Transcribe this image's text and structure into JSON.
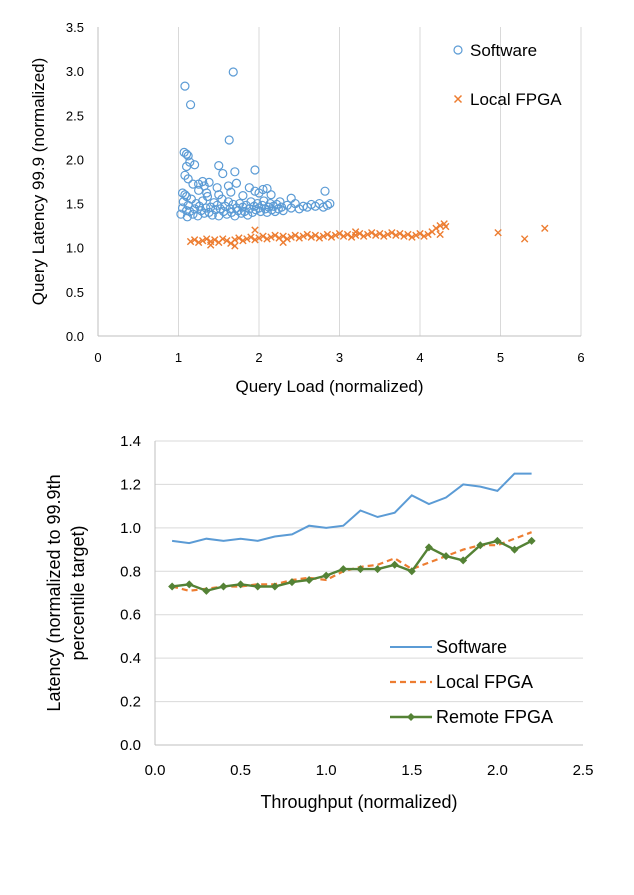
{
  "colors": {
    "software": "#5b9bd5",
    "local_fpga": "#ed7d31",
    "remote_fpga": "#548235",
    "gridline": "#d9d9d9",
    "axis": "#bfbfbf"
  },
  "chart_data": [
    {
      "type": "scatter",
      "xlabel": "Query Load (normalized)",
      "ylabel": "Query Latency 99.9 (normalized)",
      "xlim": [
        0,
        6
      ],
      "ylim": [
        0,
        3.5
      ],
      "xticks": [
        "0",
        "1",
        "2",
        "3",
        "4",
        "5",
        "6"
      ],
      "yticks": [
        "0.0",
        "0.5",
        "1.0",
        "1.5",
        "2.0",
        "2.5",
        "3.0",
        "3.5"
      ],
      "grid": "vertical",
      "legend_position": "top-right",
      "series": [
        {
          "name": "Software",
          "marker": "circle",
          "points": [
            [
              1.03,
              1.38
            ],
            [
              1.05,
              1.45
            ],
            [
              1.06,
              1.52
            ],
            [
              1.08,
              1.6
            ],
            [
              1.1,
              1.42
            ],
            [
              1.11,
              1.35
            ],
            [
              1.12,
              1.48
            ],
            [
              1.14,
              1.41
            ],
            [
              1.16,
              1.55
            ],
            [
              1.18,
              1.38
            ],
            [
              1.2,
              1.44
            ],
            [
              1.22,
              1.5
            ],
            [
              1.24,
              1.36
            ],
            [
              1.26,
              1.47
            ],
            [
              1.28,
              1.42
            ],
            [
              1.3,
              1.53
            ],
            [
              1.32,
              1.39
            ],
            [
              1.34,
              1.45
            ],
            [
              1.36,
              1.58
            ],
            [
              1.38,
              1.4
            ],
            [
              1.4,
              1.46
            ],
            [
              1.42,
              1.37
            ],
            [
              1.44,
              1.51
            ],
            [
              1.46,
              1.43
            ],
            [
              1.48,
              1.48
            ],
            [
              1.5,
              1.36
            ],
            [
              1.52,
              1.44
            ],
            [
              1.54,
              1.55
            ],
            [
              1.56,
              1.41
            ],
            [
              1.58,
              1.47
            ],
            [
              1.6,
              1.38
            ],
            [
              1.62,
              1.52
            ],
            [
              1.64,
              1.44
            ],
            [
              1.66,
              1.4
            ],
            [
              1.68,
              1.49
            ],
            [
              1.7,
              1.36
            ],
            [
              1.72,
              1.45
            ],
            [
              1.74,
              1.42
            ],
            [
              1.76,
              1.5
            ],
            [
              1.78,
              1.39
            ],
            [
              1.8,
              1.46
            ],
            [
              1.82,
              1.41
            ],
            [
              1.84,
              1.48
            ],
            [
              1.86,
              1.37
            ],
            [
              1.88,
              1.44
            ],
            [
              1.9,
              1.52
            ],
            [
              1.92,
              1.4
            ],
            [
              1.94,
              1.47
            ],
            [
              1.96,
              1.43
            ],
            [
              1.98,
              1.5
            ],
            [
              2.0,
              1.45
            ],
            [
              2.02,
              1.41
            ],
            [
              2.04,
              1.48
            ],
            [
              2.06,
              1.53
            ],
            [
              2.08,
              1.44
            ],
            [
              2.1,
              1.4
            ],
            [
              2.12,
              1.46
            ],
            [
              2.14,
              1.5
            ],
            [
              2.16,
              1.43
            ],
            [
              2.18,
              1.47
            ],
            [
              2.2,
              1.41
            ],
            [
              2.22,
              1.49
            ],
            [
              2.24,
              1.44
            ],
            [
              2.26,
              1.52
            ],
            [
              2.28,
              1.46
            ],
            [
              2.3,
              1.42
            ],
            [
              2.35,
              1.48
            ],
            [
              2.4,
              1.45
            ],
            [
              2.45,
              1.5
            ],
            [
              2.5,
              1.44
            ],
            [
              2.55,
              1.47
            ],
            [
              2.6,
              1.46
            ],
            [
              2.65,
              1.49
            ],
            [
              2.7,
              1.47
            ],
            [
              2.75,
              1.5
            ],
            [
              2.8,
              1.46
            ],
            [
              2.85,
              1.48
            ],
            [
              2.88,
              1.5
            ],
            [
              1.05,
              1.62
            ],
            [
              1.1,
              1.58
            ],
            [
              1.25,
              1.65
            ],
            [
              1.35,
              1.62
            ],
            [
              1.5,
              1.6
            ],
            [
              1.65,
              1.63
            ],
            [
              1.8,
              1.59
            ],
            [
              1.95,
              1.64
            ],
            [
              2.05,
              1.66
            ],
            [
              2.15,
              1.6
            ],
            [
              2.4,
              1.56
            ],
            [
              2.82,
              1.64
            ],
            [
              1.25,
              1.72
            ],
            [
              1.32,
              1.7
            ],
            [
              1.38,
              1.74
            ],
            [
              1.48,
              1.68
            ],
            [
              1.62,
              1.7
            ],
            [
              1.72,
              1.73
            ],
            [
              1.88,
              1.68
            ],
            [
              2.0,
              1.62
            ],
            [
              2.1,
              1.67
            ],
            [
              1.08,
              1.82
            ],
            [
              1.12,
              1.78
            ],
            [
              1.18,
              1.72
            ],
            [
              1.3,
              1.75
            ],
            [
              1.55,
              1.84
            ],
            [
              1.7,
              1.86
            ],
            [
              1.1,
              1.92
            ],
            [
              1.14,
              1.97
            ],
            [
              1.2,
              1.94
            ],
            [
              1.5,
              1.93
            ],
            [
              1.95,
              1.88
            ],
            [
              1.07,
              2.08
            ],
            [
              1.1,
              2.06
            ],
            [
              1.12,
              2.04
            ],
            [
              1.63,
              2.22
            ],
            [
              1.15,
              2.62
            ],
            [
              1.08,
              2.83
            ],
            [
              1.68,
              2.99
            ]
          ]
        },
        {
          "name": "Local FPGA",
          "marker": "x",
          "points": [
            [
              1.15,
              1.07
            ],
            [
              1.2,
              1.09
            ],
            [
              1.25,
              1.06
            ],
            [
              1.3,
              1.08
            ],
            [
              1.35,
              1.1
            ],
            [
              1.4,
              1.07
            ],
            [
              1.45,
              1.09
            ],
            [
              1.5,
              1.06
            ],
            [
              1.55,
              1.1
            ],
            [
              1.6,
              1.08
            ],
            [
              1.65,
              1.05
            ],
            [
              1.7,
              1.09
            ],
            [
              1.75,
              1.11
            ],
            [
              1.8,
              1.08
            ],
            [
              1.85,
              1.1
            ],
            [
              1.9,
              1.12
            ],
            [
              1.95,
              1.09
            ],
            [
              2.0,
              1.11
            ],
            [
              2.05,
              1.13
            ],
            [
              2.1,
              1.1
            ],
            [
              2.15,
              1.12
            ],
            [
              2.2,
              1.14
            ],
            [
              2.25,
              1.11
            ],
            [
              2.3,
              1.13
            ],
            [
              2.35,
              1.1
            ],
            [
              2.4,
              1.12
            ],
            [
              2.45,
              1.14
            ],
            [
              2.5,
              1.11
            ],
            [
              2.55,
              1.13
            ],
            [
              2.6,
              1.15
            ],
            [
              2.65,
              1.12
            ],
            [
              2.7,
              1.14
            ],
            [
              2.75,
              1.11
            ],
            [
              2.8,
              1.13
            ],
            [
              2.85,
              1.15
            ],
            [
              2.9,
              1.12
            ],
            [
              2.95,
              1.14
            ],
            [
              3.0,
              1.16
            ],
            [
              3.05,
              1.13
            ],
            [
              3.1,
              1.15
            ],
            [
              3.15,
              1.12
            ],
            [
              3.2,
              1.14
            ],
            [
              3.25,
              1.16
            ],
            [
              3.3,
              1.13
            ],
            [
              3.35,
              1.15
            ],
            [
              3.4,
              1.17
            ],
            [
              3.45,
              1.14
            ],
            [
              3.5,
              1.16
            ],
            [
              3.55,
              1.13
            ],
            [
              3.6,
              1.15
            ],
            [
              3.65,
              1.17
            ],
            [
              3.7,
              1.14
            ],
            [
              3.75,
              1.16
            ],
            [
              3.8,
              1.13
            ],
            [
              3.85,
              1.15
            ],
            [
              3.9,
              1.12
            ],
            [
              3.95,
              1.14
            ],
            [
              4.0,
              1.16
            ],
            [
              4.05,
              1.13
            ],
            [
              4.1,
              1.15
            ],
            [
              4.15,
              1.18
            ],
            [
              4.2,
              1.22
            ],
            [
              4.25,
              1.25
            ],
            [
              4.3,
              1.27
            ],
            [
              4.32,
              1.24
            ],
            [
              1.4,
              1.03
            ],
            [
              1.7,
              1.02
            ],
            [
              2.3,
              1.06
            ],
            [
              3.2,
              1.18
            ],
            [
              1.95,
              1.2
            ],
            [
              4.25,
              1.15
            ],
            [
              4.97,
              1.17
            ],
            [
              5.3,
              1.1
            ],
            [
              5.55,
              1.22
            ]
          ]
        }
      ]
    },
    {
      "type": "line",
      "xlabel": "Throughput (normalized)",
      "ylabel": "Latency (normalized to 99.9th percentile target)",
      "xlim": [
        0,
        2.5
      ],
      "ylim": [
        0,
        1.4
      ],
      "xticks": [
        "0.0",
        "0.5",
        "1.0",
        "1.5",
        "2.0",
        "2.5"
      ],
      "yticks": [
        "0.0",
        "0.2",
        "0.4",
        "0.6",
        "0.8",
        "1.0",
        "1.2",
        "1.4"
      ],
      "grid": "horizontal",
      "legend_position": "bottom-right",
      "x": [
        0.1,
        0.2,
        0.3,
        0.4,
        0.5,
        0.6,
        0.7,
        0.8,
        0.9,
        1.0,
        1.1,
        1.2,
        1.3,
        1.4,
        1.5,
        1.6,
        1.7,
        1.8,
        1.9,
        2.0,
        2.1,
        2.2
      ],
      "series": [
        {
          "name": "Software",
          "style": "solid",
          "values": [
            0.94,
            0.93,
            0.95,
            0.94,
            0.95,
            0.94,
            0.96,
            0.97,
            1.01,
            1.0,
            1.01,
            1.08,
            1.05,
            1.07,
            1.15,
            1.11,
            1.14,
            1.2,
            1.19,
            1.17,
            1.25,
            1.25
          ]
        },
        {
          "name": "Local FPGA",
          "style": "dashed",
          "values": [
            0.73,
            0.71,
            0.72,
            0.73,
            0.73,
            0.74,
            0.74,
            0.76,
            0.77,
            0.76,
            0.8,
            0.82,
            0.83,
            0.86,
            0.81,
            0.84,
            0.87,
            0.9,
            0.92,
            0.92,
            0.95,
            0.98
          ]
        },
        {
          "name": "Remote FPGA",
          "style": "solid-diamond",
          "values": [
            0.73,
            0.74,
            0.71,
            0.73,
            0.74,
            0.73,
            0.73,
            0.75,
            0.76,
            0.78,
            0.81,
            0.81,
            0.81,
            0.83,
            0.8,
            0.91,
            0.87,
            0.85,
            0.92,
            0.94,
            0.9,
            0.94
          ]
        }
      ]
    }
  ]
}
